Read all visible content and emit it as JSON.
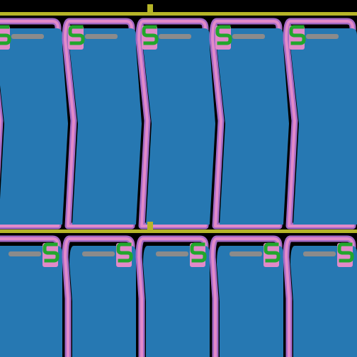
{
  "canvas": {
    "background_color": "#000000"
  },
  "palette": {
    "blue_fill": "#2678b2",
    "pink_outline": "#e28ac9",
    "purple_outline": "#a56ac6",
    "green_glyph": "#22a62c",
    "yellow_rail": "#b6b528",
    "gray_stub": "#8b8b8b"
  },
  "structure": {
    "row_count": 2,
    "cells_per_row": 5,
    "rows": [
      {
        "glyph_side": "left",
        "glyph_shape": "S-shaped contact"
      },
      {
        "glyph_side": "right",
        "glyph_shape": "S-shaped contact"
      }
    ]
  }
}
